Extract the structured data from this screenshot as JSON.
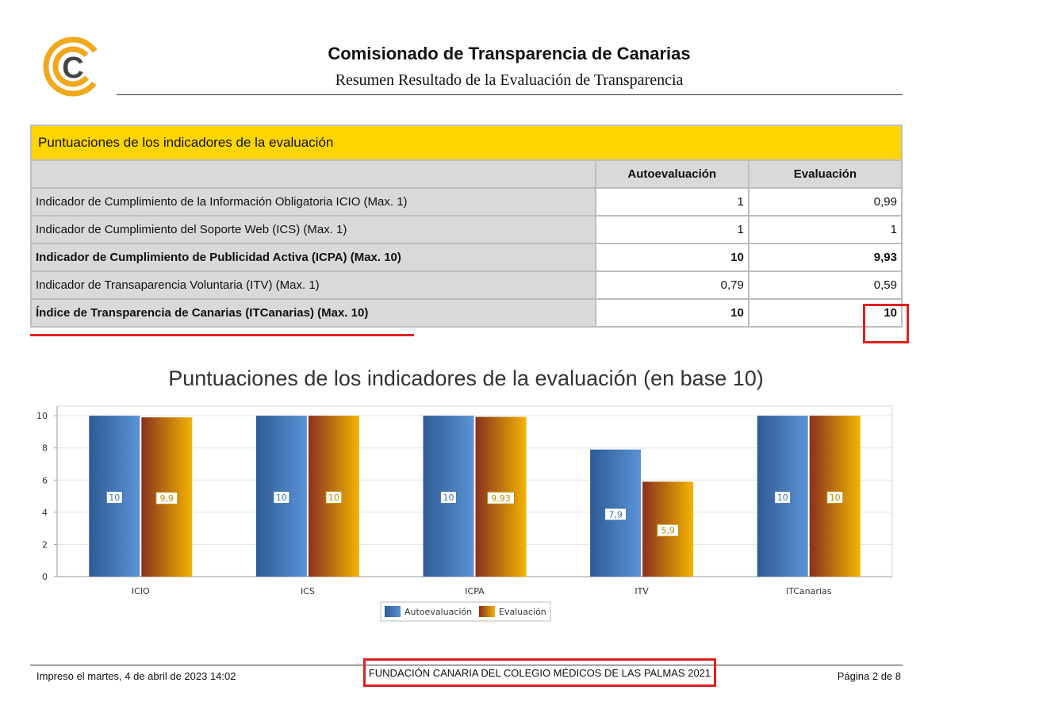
{
  "header": {
    "title": "Comisionado de Transparencia de Canarias",
    "subtitle": "Resumen Resultado de la Evaluación de Transparencia",
    "logo_letter": "C"
  },
  "table": {
    "caption": "Puntuaciones de los indicadores de la evaluación",
    "columns": [
      "Autoevaluación",
      "Evaluación"
    ],
    "rows": [
      {
        "label": "Indicador de Cumplimiento de la Información Obligatoria ICIO (Max. 1)",
        "auto": "1",
        "eval": "0,99"
      },
      {
        "label": "Indicador de Cumplimiento del Soporte Web (ICS) (Max. 1)",
        "auto": "1",
        "eval": "1"
      },
      {
        "label": "Indicador de Cumplimiento de Publicidad Activa (ICPA) (Max. 10)",
        "auto": "10",
        "eval": "9,93"
      },
      {
        "label": "Indicador de Transaparencia Voluntaria (ITV) (Max. 1)",
        "auto": "0,79",
        "eval": "0,59"
      },
      {
        "label": "Índice de Transparencia de Canarias (ITCanarias) (Max. 10)",
        "auto": "10",
        "eval": "10"
      }
    ]
  },
  "chart_data": {
    "type": "bar",
    "title": "Puntuaciones de los indicadores de la evaluación (en base 10)",
    "categories": [
      "ICIO",
      "ICS",
      "ICPA",
      "ITV",
      "ITCanarias"
    ],
    "series": [
      {
        "name": "Autoevaluación",
        "values": [
          10,
          10,
          10,
          7.9,
          10
        ],
        "labels": [
          "10",
          "10",
          "10",
          "7,9",
          "10"
        ],
        "color": "#3f74b8"
      },
      {
        "name": "Evaluación",
        "values": [
          9.9,
          10,
          9.93,
          5.9,
          10
        ],
        "labels": [
          "9,9",
          "10",
          "9,93",
          "5,9",
          "10"
        ],
        "color": "#e0a000"
      }
    ],
    "ylim": [
      0,
      10.6
    ],
    "yticks": [
      "0",
      "2",
      "4",
      "6",
      "8",
      "10"
    ],
    "xlabel": "",
    "ylabel": "",
    "legend": "bottom-center"
  },
  "footer": {
    "printed": "Impreso el martes, 4 de abril de 2023 14:02",
    "organization": "FUNDACIÓN CANARIA DEL COLEGIO MÉDICOS DE LAS PALMAS 2021",
    "page": "Página 2 de 8"
  },
  "colors": {
    "caption_bg": "#ffd500",
    "highlight": "#e02020",
    "logo": "#f0a81c"
  }
}
